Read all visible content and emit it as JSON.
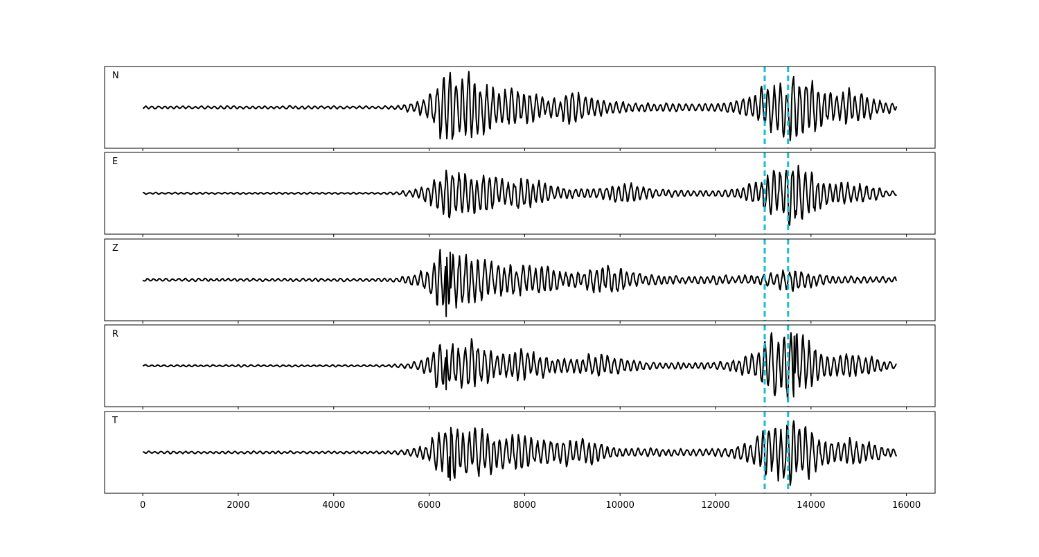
{
  "chart_data": {
    "type": "line",
    "title": "",
    "xlabel": "",
    "ylabel": "",
    "xlim": [
      -800,
      16600
    ],
    "x_ticks": [
      0,
      2000,
      4000,
      6000,
      8000,
      10000,
      12000,
      14000,
      16000
    ],
    "x_tick_labels": [
      "0",
      "2000",
      "4000",
      "6000",
      "8000",
      "10000",
      "12000",
      "14000",
      "16000"
    ],
    "sample_range": [
      0,
      15800
    ],
    "grid": false,
    "legend": "none",
    "trace_color": "#000000",
    "marker_color": "#17becf",
    "vertical_markers": [
      13030,
      13520
    ],
    "panels": [
      {
        "label": "N",
        "noise_amp": 0.05,
        "bursts": [
          {
            "x": 6400,
            "amp": 0.95
          },
          {
            "x": 7000,
            "amp": 0.45
          },
          {
            "x": 7800,
            "amp": 0.4
          },
          {
            "x": 9000,
            "amp": 0.35
          },
          {
            "x": 13100,
            "amp": 0.5
          },
          {
            "x": 13700,
            "amp": 0.9
          },
          {
            "x": 14800,
            "amp": 0.45
          }
        ],
        "peak_max": 0.94,
        "peak_min": -0.86,
        "peak_max_x": 6440,
        "peak_min_x": 6480
      },
      {
        "label": "E",
        "noise_amp": 0.04,
        "bursts": [
          {
            "x": 6350,
            "amp": 0.8
          },
          {
            "x": 7100,
            "amp": 0.55
          },
          {
            "x": 8000,
            "amp": 0.45
          },
          {
            "x": 10000,
            "amp": 0.3
          },
          {
            "x": 13200,
            "amp": 0.7
          },
          {
            "x": 13700,
            "amp": 0.9
          },
          {
            "x": 14800,
            "amp": 0.35
          }
        ],
        "peak_max": 0.78,
        "peak_min": -0.84,
        "peak_max_x": 6360,
        "peak_min_x": 13660
      },
      {
        "label": "Z",
        "noise_amp": 0.05,
        "bursts": [
          {
            "x": 6300,
            "amp": 0.75
          },
          {
            "x": 7000,
            "amp": 0.45
          },
          {
            "x": 8100,
            "amp": 0.4
          },
          {
            "x": 9600,
            "amp": 0.35
          },
          {
            "x": 13500,
            "amp": 0.25
          }
        ],
        "peak_max": 0.72,
        "peak_min": -0.96,
        "peak_max_x": 6440,
        "peak_min_x": 6360
      },
      {
        "label": "R",
        "noise_amp": 0.04,
        "bursts": [
          {
            "x": 6300,
            "amp": 0.6
          },
          {
            "x": 7000,
            "amp": 0.5
          },
          {
            "x": 8000,
            "amp": 0.4
          },
          {
            "x": 9500,
            "amp": 0.3
          },
          {
            "x": 13150,
            "amp": 0.75
          },
          {
            "x": 13650,
            "amp": 0.9
          },
          {
            "x": 14800,
            "amp": 0.4
          }
        ],
        "peak_max": 0.92,
        "peak_min": -0.74,
        "peak_max_x": 13650,
        "peak_min_x": 6360
      },
      {
        "label": "T",
        "noise_amp": 0.05,
        "bursts": [
          {
            "x": 6400,
            "amp": 0.8
          },
          {
            "x": 7000,
            "amp": 0.5
          },
          {
            "x": 7900,
            "amp": 0.5
          },
          {
            "x": 9000,
            "amp": 0.4
          },
          {
            "x": 13150,
            "amp": 0.75
          },
          {
            "x": 13650,
            "amp": 0.9
          },
          {
            "x": 14900,
            "amp": 0.4
          }
        ],
        "peak_max": 0.86,
        "peak_min": -0.86,
        "peak_max_x": 13650,
        "peak_min_x": 6440
      }
    ]
  }
}
